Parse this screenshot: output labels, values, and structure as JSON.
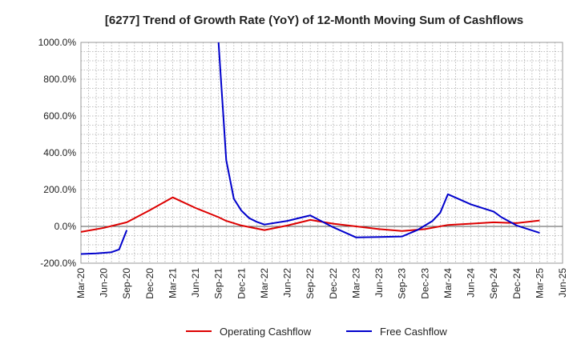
{
  "chart_data": {
    "type": "line",
    "title": "[6277]  Trend of Growth Rate (YoY) of 12-Month Moving Sum of Cashflows",
    "xlabel": "",
    "ylabel": "",
    "ylim": [
      -200,
      1000
    ],
    "yticks": [
      -200,
      0,
      200,
      400,
      600,
      800,
      1000
    ],
    "ytick_labels": [
      "-200.0%",
      "0.0%",
      "200.0%",
      "400.0%",
      "600.0%",
      "800.0%",
      "1000.0%"
    ],
    "xticks": [
      "2020-03",
      "2020-06",
      "2020-09",
      "2020-12",
      "2021-03",
      "2021-06",
      "2021-09",
      "2021-12",
      "2022-03",
      "2022-06",
      "2022-09",
      "2022-12",
      "2023-03",
      "2023-06",
      "2023-09",
      "2023-12",
      "2024-03",
      "2024-06",
      "2024-09",
      "2024-12",
      "2025-03",
      "2025-06"
    ],
    "xtick_labels": [
      "Mar-20",
      "Jun-20",
      "Sep-20",
      "Dec-20",
      "Mar-21",
      "Jun-21",
      "Sep-21",
      "Dec-21",
      "Mar-22",
      "Jun-22",
      "Sep-22",
      "Dec-22",
      "Mar-23",
      "Jun-23",
      "Sep-23",
      "Dec-23",
      "Mar-24",
      "Jun-24",
      "Sep-24",
      "Dec-24",
      "Mar-25",
      "Jun-25"
    ],
    "grid": true,
    "legend_position": "bottom",
    "series": [
      {
        "name": "Operating Cashflow",
        "color": "#dd0000",
        "points": [
          [
            "2020-03",
            -30
          ],
          [
            "2020-06",
            -8
          ],
          [
            "2020-09",
            22
          ],
          [
            "2020-12",
            88
          ],
          [
            "2021-03",
            158
          ],
          [
            "2021-06",
            100
          ],
          [
            "2021-09",
            50
          ],
          [
            "2021-10",
            30
          ],
          [
            "2021-12",
            5
          ],
          [
            "2022-03",
            -20
          ],
          [
            "2022-06",
            5
          ],
          [
            "2022-09",
            35
          ],
          [
            "2022-12",
            15
          ],
          [
            "2023-03",
            0
          ],
          [
            "2023-06",
            -15
          ],
          [
            "2023-09",
            -25
          ],
          [
            "2023-12",
            -15
          ],
          [
            "2024-03",
            8
          ],
          [
            "2024-06",
            15
          ],
          [
            "2024-09",
            22
          ],
          [
            "2024-12",
            18
          ],
          [
            "2025-03",
            32
          ]
        ]
      },
      {
        "name": "Free Cashflow",
        "color": "#0000cc",
        "segments": [
          [
            [
              "2020-03",
              -150
            ],
            [
              "2020-05",
              -147
            ],
            [
              "2020-07",
              -140
            ],
            [
              "2020-08",
              -125
            ],
            [
              "2020-09",
              -20
            ]
          ],
          [
            [
              "2021-09",
              1000
            ],
            [
              "2021-10",
              360
            ],
            [
              "2021-11",
              150
            ],
            [
              "2021-12",
              85
            ],
            [
              "2022-01",
              45
            ],
            [
              "2022-02",
              25
            ],
            [
              "2022-03",
              10
            ],
            [
              "2022-06",
              30
            ],
            [
              "2022-09",
              60
            ],
            [
              "2022-12",
              -5
            ],
            [
              "2023-03",
              -60
            ],
            [
              "2023-06",
              -58
            ],
            [
              "2023-09",
              -55
            ],
            [
              "2023-11",
              -20
            ],
            [
              "2024-01",
              30
            ],
            [
              "2024-02",
              75
            ],
            [
              "2024-03",
              175
            ],
            [
              "2024-06",
              120
            ],
            [
              "2024-09",
              80
            ],
            [
              "2024-10",
              50
            ],
            [
              "2024-12",
              5
            ],
            [
              "2025-03",
              -35
            ]
          ]
        ]
      }
    ]
  }
}
